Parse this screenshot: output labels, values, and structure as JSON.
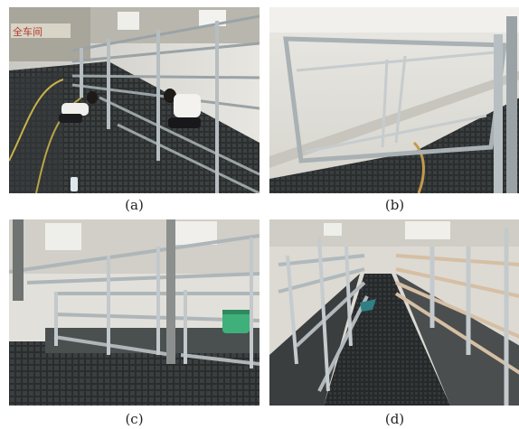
{
  "figure": {
    "panels": [
      {
        "id": "a",
        "caption": "(a)",
        "sign_text": "全车间"
      },
      {
        "id": "b",
        "caption": "(b)"
      },
      {
        "id": "c",
        "caption": "(c)"
      },
      {
        "id": "d",
        "caption": "(d)"
      }
    ]
  }
}
